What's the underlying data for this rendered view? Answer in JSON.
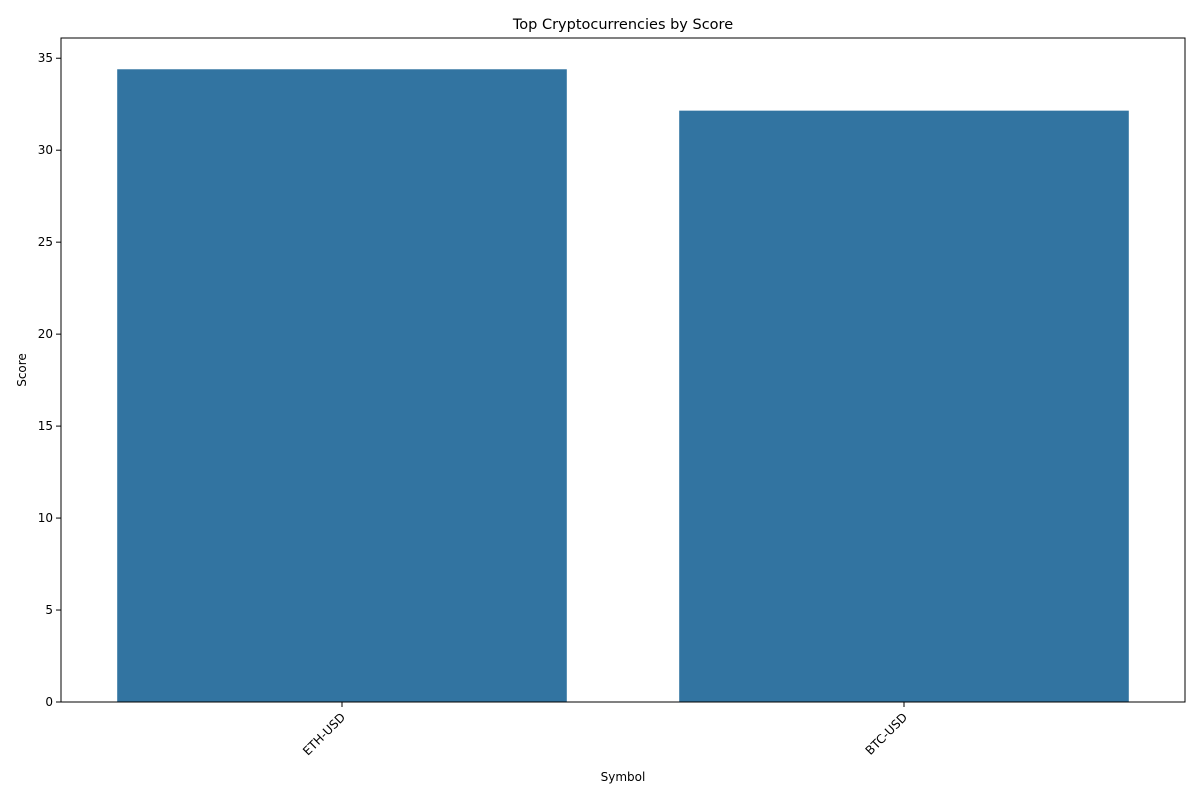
{
  "chart_data": {
    "type": "bar",
    "title": "Top Cryptocurrencies by Score",
    "xlabel": "Symbol",
    "ylabel": "Score",
    "categories": [
      "ETH-USD",
      "BTC-USD"
    ],
    "values": [
      34.4,
      32.15
    ],
    "ylim": [
      0,
      36.1
    ],
    "yticks": [
      0,
      5,
      10,
      15,
      20,
      25,
      30,
      35
    ],
    "bar_color": "#3274a1",
    "grid": false,
    "legend": "none"
  }
}
